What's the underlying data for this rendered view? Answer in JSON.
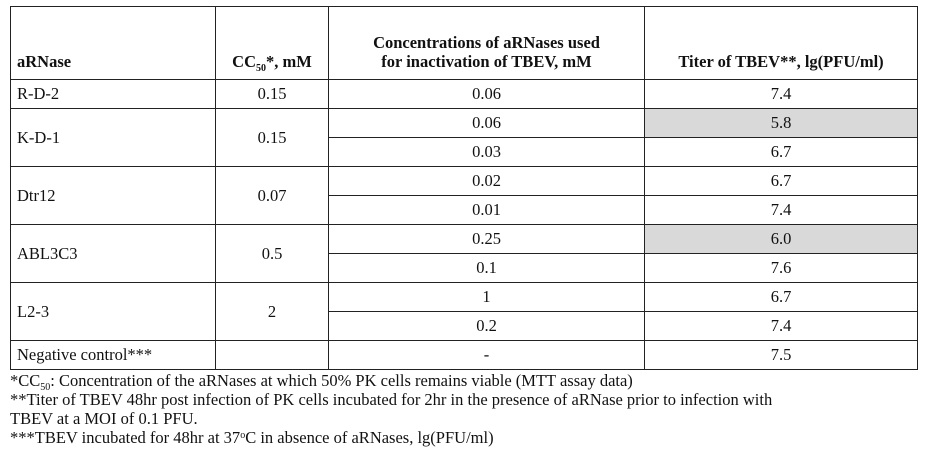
{
  "table": {
    "headers": {
      "arnase": "aRNase",
      "cc50_prefix": "CC",
      "cc50_sub": "50",
      "cc50_suffix": "*, mM",
      "conc_line1": "Concentrations of aRNases used",
      "conc_line2": "for inactivation of TBEV, mM",
      "titer": "Titer of TBEV**, lg(PFU/ml)"
    },
    "groups": [
      {
        "name": "R-D-2",
        "cc50": "0.15",
        "rows": [
          {
            "conc": "0.06",
            "titer": "7.4",
            "highlight": false
          }
        ]
      },
      {
        "name": "K-D-1",
        "cc50": "0.15",
        "rows": [
          {
            "conc": "0.06",
            "titer": "5.8",
            "highlight": true
          },
          {
            "conc": "0.03",
            "titer": "6.7",
            "highlight": false
          }
        ]
      },
      {
        "name": "Dtr12",
        "cc50": "0.07",
        "rows": [
          {
            "conc": "0.02",
            "titer": "6.7",
            "highlight": false
          },
          {
            "conc": "0.01",
            "titer": "7.4",
            "highlight": false
          }
        ]
      },
      {
        "name": "ABL3C3",
        "cc50": "0.5",
        "rows": [
          {
            "conc": "0.25",
            "titer": "6.0",
            "highlight": true
          },
          {
            "conc": "0.1",
            "titer": "7.6",
            "highlight": false
          }
        ]
      },
      {
        "name": "L2-3",
        "cc50": "2",
        "rows": [
          {
            "conc": "1",
            "titer": "6.7",
            "highlight": false
          },
          {
            "conc": "0.2",
            "titer": "7.4",
            "highlight": false
          }
        ]
      },
      {
        "name": "Negative control***",
        "cc50": "",
        "rows": [
          {
            "conc": "-",
            "titer": "7.5",
            "highlight": false
          }
        ]
      }
    ],
    "highlight_color": "#d9d9d9"
  },
  "notes": {
    "note1_prefix": "*CC",
    "note1_sub": "50",
    "note1_text": ": Concentration of the aRNases at which 50% PK cells remains viable (MTT assay data)",
    "note2_line1": "**Titer of TBEV 48hr post infection of PK cells incubated for 2hr in the presence of aRNase prior to infection with",
    "note2_line2": "TBEV at a MOI of 0.1 PFU.",
    "note3_prefix": "***TBEV incubated for 48hr at 37",
    "note3_sup": "o",
    "note3_suffix": "C in absence of aRNases, lg(PFU/ml)"
  }
}
